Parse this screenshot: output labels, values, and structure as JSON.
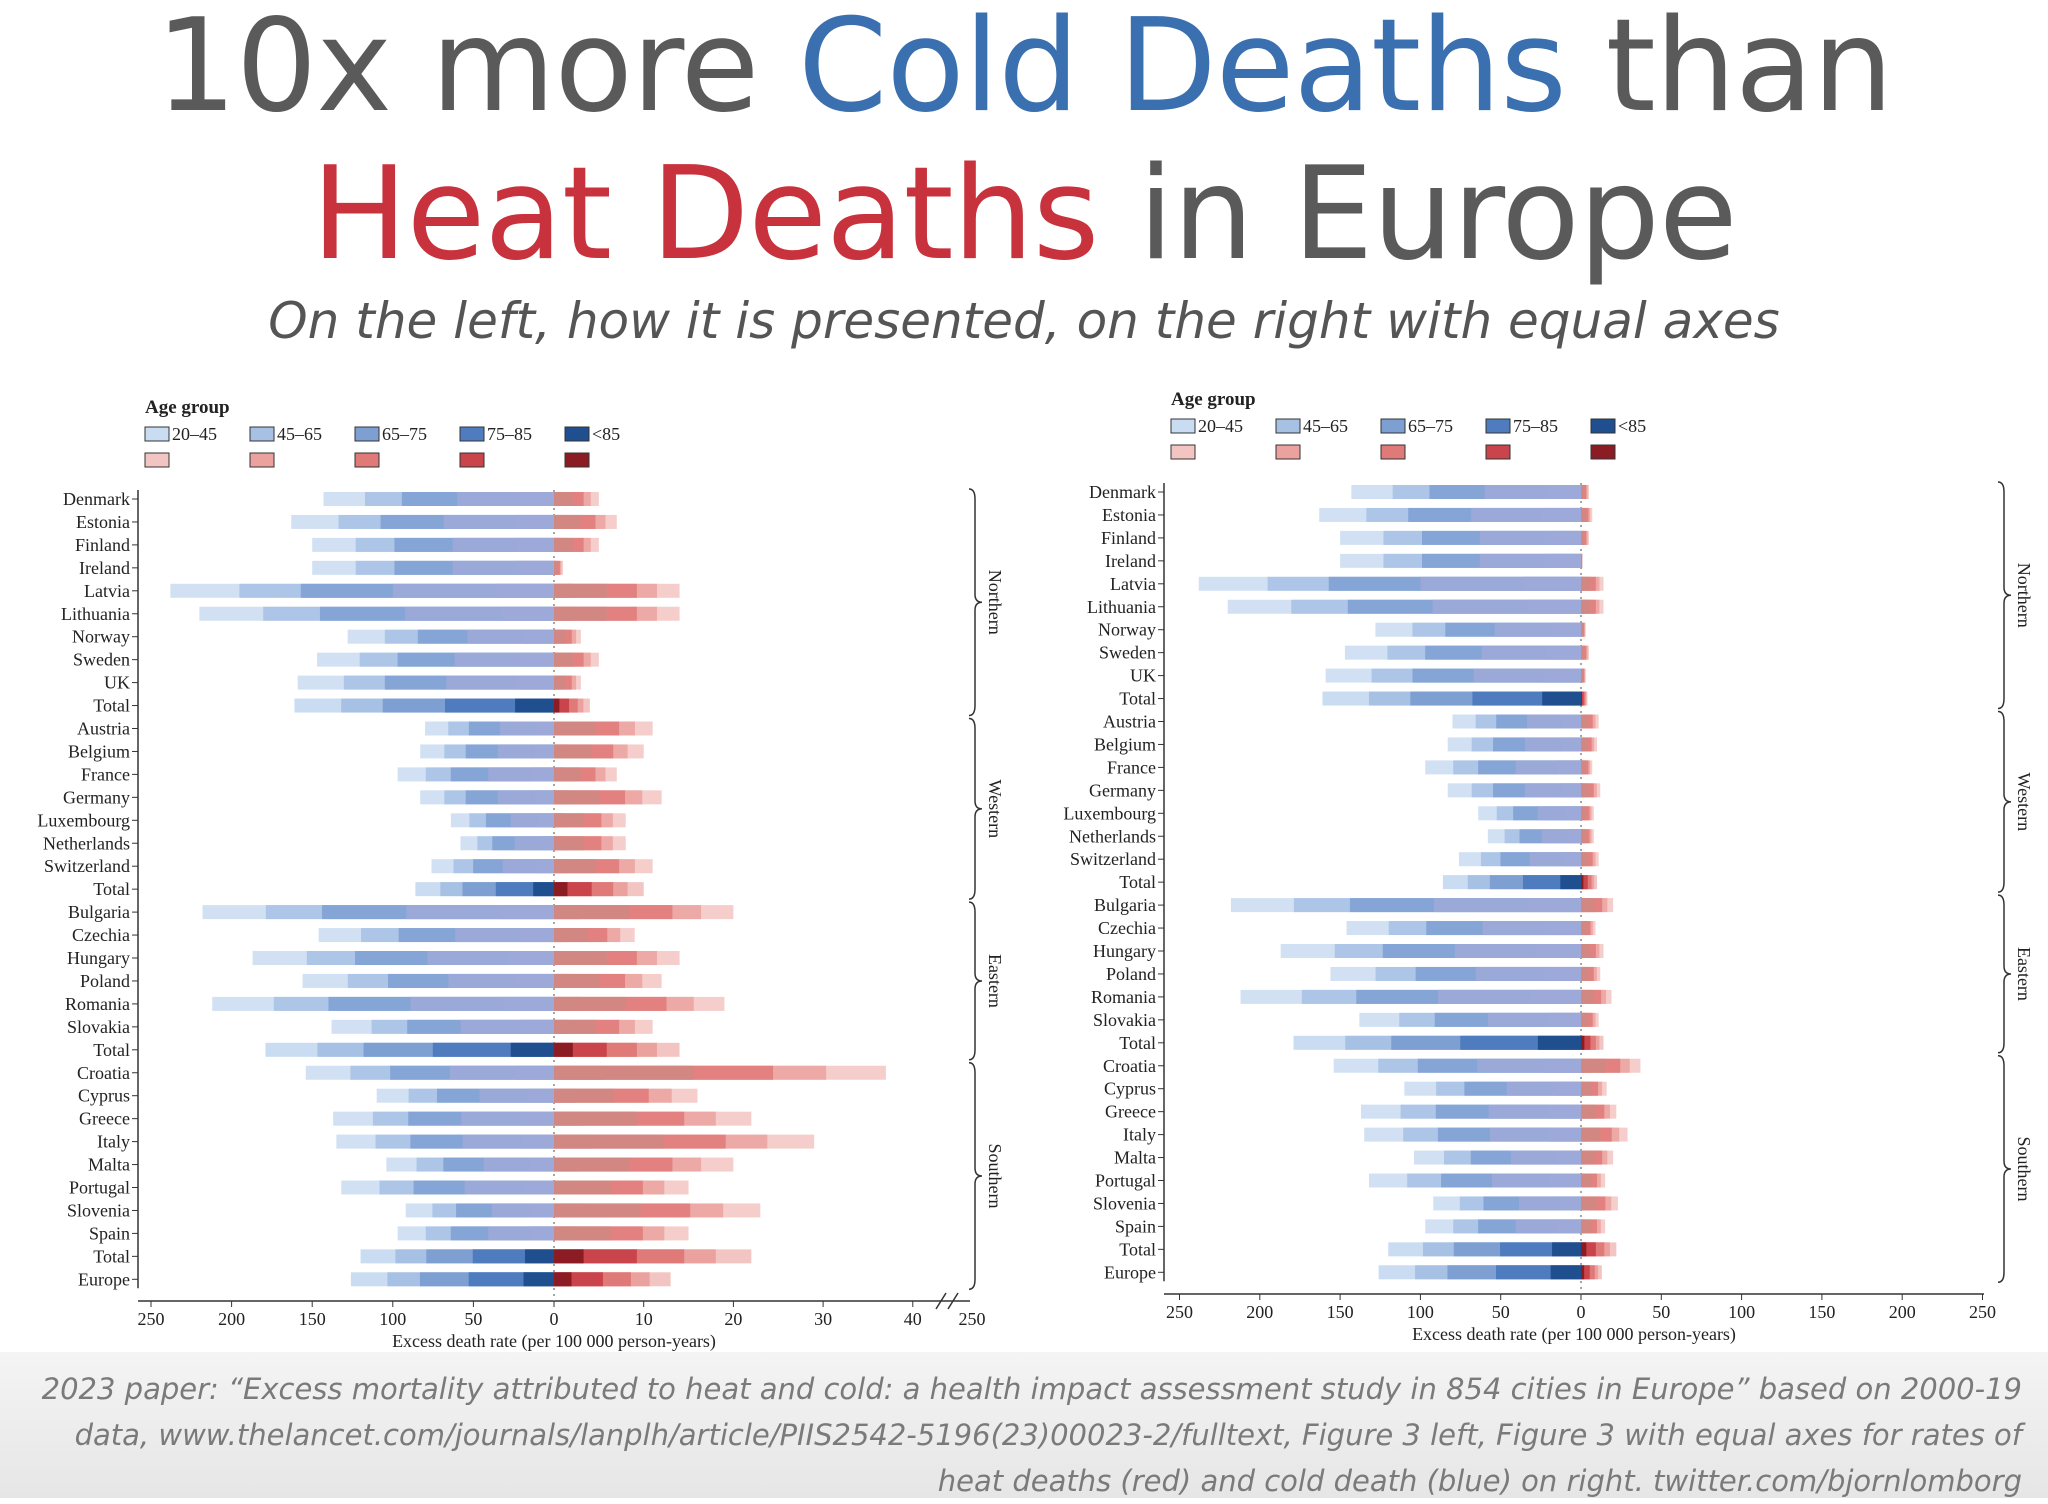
{
  "title": {
    "line1_a": "10x more ",
    "line1_b": "Cold Deaths",
    "line1_c": " than",
    "line2_a": "Heat Deaths",
    "line2_b": " in Europe",
    "subtitle": "On the left, how it is presented, on the right with equal axes"
  },
  "footer": {
    "text": "2023 paper: “Excess mortality attributed to heat and cold: a health impact assessment study in 854 cities in Europe” based on 2000-19 data, www.thelancet.com/journals/lanplh/article/PIIS2542-5196(23)00023-2/fulltext, Figure 3 left, Figure 3 with equal axes for rates of heat deaths (red) and cold death (blue) on right. twitter.com/bjornlomborg"
  },
  "colors": {
    "cold": [
      "#c9dcf1",
      "#a7c1e4",
      "#7e9fd2",
      "#4f7cbf",
      "#1f4f8f"
    ],
    "heat": [
      "#f3c5c2",
      "#eba29f",
      "#df7a78",
      "#c9444b",
      "#8c1c24"
    ]
  },
  "chart_data": [
    {
      "type": "bar",
      "orientation": "horizontal",
      "stacking": "overlapping",
      "panel": "left",
      "title": "",
      "legend_title": "Age group",
      "age_groups": [
        "20–45",
        "45–65",
        "65–75",
        "75–85",
        "<85"
      ],
      "categories": [
        "Denmark",
        "Estonia",
        "Finland",
        "Ireland",
        "Latvia",
        "Lithuania",
        "Norway",
        "Sweden",
        "UK",
        "Total",
        "Austria",
        "Belgium",
        "France",
        "Germany",
        "Luxembourg",
        "Netherlands",
        "Switzerland",
        "Total",
        "Bulgaria",
        "Czechia",
        "Hungary",
        "Poland",
        "Romania",
        "Slovakia",
        "Total",
        "Croatia",
        "Cyprus",
        "Greece",
        "Italy",
        "Malta",
        "Portugal",
        "Slovenia",
        "Spain",
        "Total",
        "Europe"
      ],
      "regions": [
        {
          "name": "Northern",
          "from": 0,
          "to": 9
        },
        {
          "name": "Western",
          "from": 10,
          "to": 17
        },
        {
          "name": "Eastern",
          "from": 18,
          "to": 24
        },
        {
          "name": "Southern",
          "from": 25,
          "to": 34
        }
      ],
      "cold_rate_total": [
        143,
        163,
        150,
        150,
        238,
        220,
        128,
        147,
        159,
        161,
        80,
        83,
        97,
        83,
        64,
        58,
        76,
        86,
        218,
        146,
        187,
        156,
        212,
        138,
        179,
        154,
        110,
        137,
        135,
        104,
        132,
        92,
        97,
        120,
        126
      ],
      "heat_rate_total": [
        5,
        7,
        5,
        1,
        14,
        14,
        3,
        5,
        3,
        4,
        11,
        10,
        7,
        12,
        8,
        8,
        11,
        10,
        20,
        9,
        14,
        12,
        19,
        11,
        14,
        37,
        16,
        22,
        29,
        20,
        15,
        23,
        15,
        22,
        13
      ],
      "xlabel": "Excess death rate (per 100 000 person-years)",
      "x_cold_ticks": [
        "250",
        "200",
        "150",
        "100",
        "50",
        "0"
      ],
      "x_heat_ticks": [
        "10",
        "20",
        "30",
        "40"
      ],
      "x_break_label": "250",
      "x_cold_range": [
        0,
        250
      ],
      "x_heat_range": [
        0,
        40
      ]
    },
    {
      "type": "bar",
      "orientation": "horizontal",
      "stacking": "overlapping",
      "panel": "right",
      "title": "",
      "legend_title": "Age group",
      "age_groups": [
        "20–45",
        "45–65",
        "65–75",
        "75–85",
        "<85"
      ],
      "categories": [
        "Denmark",
        "Estonia",
        "Finland",
        "Ireland",
        "Latvia",
        "Lithuania",
        "Norway",
        "Sweden",
        "UK",
        "Total",
        "Austria",
        "Belgium",
        "France",
        "Germany",
        "Luxembourg",
        "Netherlands",
        "Switzerland",
        "Total",
        "Bulgaria",
        "Czechia",
        "Hungary",
        "Poland",
        "Romania",
        "Slovakia",
        "Total",
        "Croatia",
        "Cyprus",
        "Greece",
        "Italy",
        "Malta",
        "Portugal",
        "Slovenia",
        "Spain",
        "Total",
        "Europe"
      ],
      "regions": [
        {
          "name": "Northern",
          "from": 0,
          "to": 9
        },
        {
          "name": "Western",
          "from": 10,
          "to": 17
        },
        {
          "name": "Eastern",
          "from": 18,
          "to": 24
        },
        {
          "name": "Southern",
          "from": 25,
          "to": 34
        }
      ],
      "cold_rate_total": [
        143,
        163,
        150,
        150,
        238,
        220,
        128,
        147,
        159,
        161,
        80,
        83,
        97,
        83,
        64,
        58,
        76,
        86,
        218,
        146,
        187,
        156,
        212,
        138,
        179,
        154,
        110,
        137,
        135,
        104,
        132,
        92,
        97,
        120,
        126
      ],
      "heat_rate_total": [
        5,
        7,
        5,
        1,
        14,
        14,
        3,
        5,
        3,
        4,
        11,
        10,
        7,
        12,
        8,
        8,
        11,
        10,
        20,
        9,
        14,
        12,
        19,
        11,
        14,
        37,
        16,
        22,
        29,
        20,
        15,
        23,
        15,
        22,
        13
      ],
      "xlabel": "Excess death rate (per 100 000 person-years)",
      "x_cold_ticks": [
        "250",
        "200",
        "150",
        "100",
        "50",
        "0"
      ],
      "x_heat_ticks": [
        "50",
        "100",
        "150",
        "200",
        "250"
      ],
      "x_cold_range": [
        0,
        250
      ],
      "x_heat_range": [
        0,
        250
      ]
    }
  ]
}
